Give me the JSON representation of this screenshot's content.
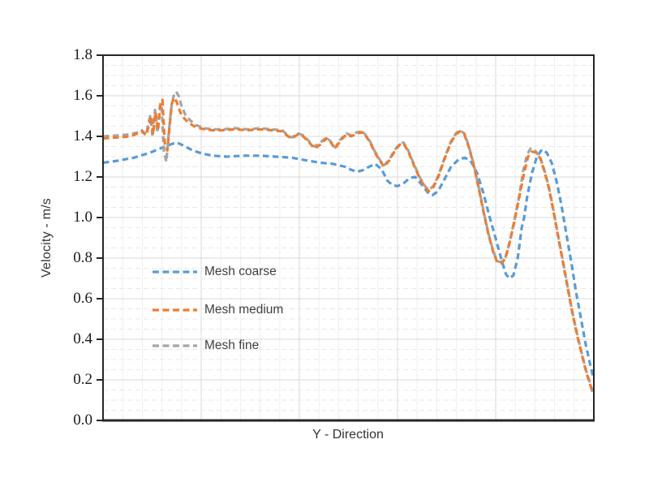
{
  "chart": {
    "y_axis_title": "Velocity - m/s",
    "x_axis_title": "Y - Direction",
    "y_ticks": [
      "1.8",
      "1.6",
      "1.4",
      "1.2",
      "1.0",
      "0.8",
      "0.6",
      "0.4",
      "0.2",
      "0.0"
    ]
  },
  "legend": {
    "items": [
      {
        "label": "Mesh coarse",
        "color": "#5B9BD5"
      },
      {
        "label": "Mesh medium",
        "color": "#ED7D31"
      },
      {
        "label": "Mesh fine",
        "color": "#A5A5A5"
      }
    ]
  },
  "colors": {
    "axis_border": "#262626",
    "grid_major": "#D9D9D9",
    "grid_minor": "#EFEFEF",
    "grid_minor_dashed": "#E9E9E9"
  },
  "chart_data": {
    "type": "line",
    "title": "",
    "xlabel": "Y - Direction",
    "ylabel": "Velocity - m/s",
    "ylim": [
      0,
      1.8
    ],
    "y_tick_step": 0.2,
    "y_minor_step": 0.05,
    "xlim": [
      0,
      1
    ],
    "x_minor_divisions": 25,
    "x_major_divisions": 5,
    "grid": "major-solid, minor-dashed-horizontal, minor-solid-vertical",
    "legend_position": "inside-left-middle",
    "line_style": "dashed",
    "x_note": "x axis has no numeric tick labels; x given as normalized 0-1 across plot",
    "series": [
      {
        "name": "Mesh coarse",
        "color": "#5B9BD5",
        "points": [
          [
            0,
            1.27
          ],
          [
            0.03,
            1.28
          ],
          [
            0.063,
            1.295
          ],
          [
            0.096,
            1.32
          ],
          [
            0.121,
            1.345
          ],
          [
            0.137,
            1.36
          ],
          [
            0.15,
            1.37
          ],
          [
            0.164,
            1.355
          ],
          [
            0.183,
            1.33
          ],
          [
            0.203,
            1.315
          ],
          [
            0.223,
            1.305
          ],
          [
            0.253,
            1.3
          ],
          [
            0.286,
            1.305
          ],
          [
            0.319,
            1.305
          ],
          [
            0.352,
            1.3
          ],
          [
            0.385,
            1.295
          ],
          [
            0.418,
            1.28
          ],
          [
            0.443,
            1.27
          ],
          [
            0.468,
            1.265
          ],
          [
            0.493,
            1.25
          ],
          [
            0.506,
            1.235
          ],
          [
            0.517,
            1.225
          ],
          [
            0.531,
            1.235
          ],
          [
            0.542,
            1.25
          ],
          [
            0.554,
            1.265
          ],
          [
            0.567,
            1.24
          ],
          [
            0.58,
            1.18
          ],
          [
            0.59,
            1.16
          ],
          [
            0.6,
            1.155
          ],
          [
            0.613,
            1.17
          ],
          [
            0.625,
            1.195
          ],
          [
            0.636,
            1.2
          ],
          [
            0.65,
            1.16
          ],
          [
            0.661,
            1.125
          ],
          [
            0.671,
            1.11
          ],
          [
            0.683,
            1.13
          ],
          [
            0.696,
            1.19
          ],
          [
            0.709,
            1.25
          ],
          [
            0.724,
            1.285
          ],
          [
            0.737,
            1.295
          ],
          [
            0.749,
            1.28
          ],
          [
            0.762,
            1.22
          ],
          [
            0.775,
            1.12
          ],
          [
            0.788,
            1.0
          ],
          [
            0.802,
            0.88
          ],
          [
            0.812,
            0.79
          ],
          [
            0.821,
            0.72
          ],
          [
            0.828,
            0.7
          ],
          [
            0.836,
            0.715
          ],
          [
            0.845,
            0.8
          ],
          [
            0.853,
            0.95
          ],
          [
            0.858,
            1.0
          ],
          [
            0.864,
            1.1
          ],
          [
            0.874,
            1.22
          ],
          [
            0.884,
            1.3
          ],
          [
            0.894,
            1.335
          ],
          [
            0.904,
            1.32
          ],
          [
            0.914,
            1.27
          ],
          [
            0.924,
            1.18
          ],
          [
            0.934,
            1.06
          ],
          [
            0.944,
            0.92
          ],
          [
            0.954,
            0.78
          ],
          [
            0.964,
            0.63
          ],
          [
            0.974,
            0.5
          ],
          [
            0.983,
            0.38
          ],
          [
            0.992,
            0.28
          ],
          [
            0.998,
            0.22
          ]
        ]
      },
      {
        "name": "Mesh medium",
        "color": "#ED7D31",
        "points": [
          [
            0,
            1.39
          ],
          [
            0.03,
            1.395
          ],
          [
            0.055,
            1.4
          ],
          [
            0.071,
            1.415
          ],
          [
            0.079,
            1.425
          ],
          [
            0.088,
            1.405
          ],
          [
            0.094,
            1.46
          ],
          [
            0.098,
            1.5
          ],
          [
            0.102,
            1.41
          ],
          [
            0.107,
            1.52
          ],
          [
            0.112,
            1.43
          ],
          [
            0.117,
            1.56
          ],
          [
            0.121,
            1.58
          ],
          [
            0.126,
            1.36
          ],
          [
            0.131,
            1.33
          ],
          [
            0.136,
            1.46
          ],
          [
            0.14,
            1.56
          ],
          [
            0.145,
            1.59
          ],
          [
            0.15,
            1.57
          ],
          [
            0.157,
            1.52
          ],
          [
            0.165,
            1.49
          ],
          [
            0.175,
            1.465
          ],
          [
            0.19,
            1.445
          ],
          [
            0.207,
            1.435
          ],
          [
            0.223,
            1.43
          ],
          [
            0.245,
            1.43
          ],
          [
            0.269,
            1.435
          ],
          [
            0.294,
            1.43
          ],
          [
            0.319,
            1.435
          ],
          [
            0.344,
            1.43
          ],
          [
            0.365,
            1.425
          ],
          [
            0.377,
            1.4
          ],
          [
            0.385,
            1.39
          ],
          [
            0.397,
            1.41
          ],
          [
            0.408,
            1.4
          ],
          [
            0.42,
            1.37
          ],
          [
            0.431,
            1.34
          ],
          [
            0.443,
            1.36
          ],
          [
            0.455,
            1.39
          ],
          [
            0.464,
            1.37
          ],
          [
            0.473,
            1.34
          ],
          [
            0.484,
            1.38
          ],
          [
            0.496,
            1.41
          ],
          [
            0.506,
            1.4
          ],
          [
            0.517,
            1.415
          ],
          [
            0.529,
            1.42
          ],
          [
            0.542,
            1.38
          ],
          [
            0.554,
            1.32
          ],
          [
            0.564,
            1.28
          ],
          [
            0.572,
            1.25
          ],
          [
            0.583,
            1.28
          ],
          [
            0.595,
            1.33
          ],
          [
            0.605,
            1.36
          ],
          [
            0.612,
            1.365
          ],
          [
            0.621,
            1.33
          ],
          [
            0.633,
            1.26
          ],
          [
            0.646,
            1.19
          ],
          [
            0.656,
            1.15
          ],
          [
            0.663,
            1.13
          ],
          [
            0.673,
            1.15
          ],
          [
            0.683,
            1.2
          ],
          [
            0.696,
            1.29
          ],
          [
            0.709,
            1.37
          ],
          [
            0.719,
            1.41
          ],
          [
            0.727,
            1.425
          ],
          [
            0.736,
            1.41
          ],
          [
            0.745,
            1.35
          ],
          [
            0.755,
            1.26
          ],
          [
            0.765,
            1.15
          ],
          [
            0.775,
            1.03
          ],
          [
            0.785,
            0.92
          ],
          [
            0.795,
            0.83
          ],
          [
            0.803,
            0.78
          ],
          [
            0.812,
            0.775
          ],
          [
            0.82,
            0.8
          ],
          [
            0.828,
            0.87
          ],
          [
            0.838,
            0.98
          ],
          [
            0.848,
            1.1
          ],
          [
            0.858,
            1.22
          ],
          [
            0.866,
            1.3
          ],
          [
            0.874,
            1.325
          ],
          [
            0.883,
            1.32
          ],
          [
            0.891,
            1.29
          ],
          [
            0.899,
            1.23
          ],
          [
            0.908,
            1.15
          ],
          [
            0.917,
            1.04
          ],
          [
            0.927,
            0.91
          ],
          [
            0.937,
            0.78
          ],
          [
            0.947,
            0.65
          ],
          [
            0.957,
            0.52
          ],
          [
            0.967,
            0.41
          ],
          [
            0.977,
            0.31
          ],
          [
            0.985,
            0.235
          ],
          [
            0.992,
            0.18
          ],
          [
            0.998,
            0.14
          ]
        ]
      },
      {
        "name": "Mesh fine",
        "color": "#A5A5A5",
        "points": [
          [
            0,
            1.4
          ],
          [
            0.03,
            1.405
          ],
          [
            0.055,
            1.41
          ],
          [
            0.071,
            1.42
          ],
          [
            0.079,
            1.43
          ],
          [
            0.088,
            1.41
          ],
          [
            0.093,
            1.47
          ],
          [
            0.096,
            1.5
          ],
          [
            0.101,
            1.4
          ],
          [
            0.106,
            1.53
          ],
          [
            0.111,
            1.42
          ],
          [
            0.116,
            1.55
          ],
          [
            0.119,
            1.56
          ],
          [
            0.124,
            1.33
          ],
          [
            0.129,
            1.275
          ],
          [
            0.134,
            1.42
          ],
          [
            0.139,
            1.54
          ],
          [
            0.144,
            1.6
          ],
          [
            0.149,
            1.62
          ],
          [
            0.154,
            1.6
          ],
          [
            0.16,
            1.55
          ],
          [
            0.167,
            1.51
          ],
          [
            0.177,
            1.48
          ],
          [
            0.19,
            1.455
          ],
          [
            0.207,
            1.44
          ],
          [
            0.223,
            1.435
          ],
          [
            0.245,
            1.435
          ],
          [
            0.269,
            1.44
          ],
          [
            0.294,
            1.435
          ],
          [
            0.319,
            1.44
          ],
          [
            0.344,
            1.435
          ],
          [
            0.365,
            1.43
          ],
          [
            0.377,
            1.405
          ],
          [
            0.385,
            1.395
          ],
          [
            0.397,
            1.415
          ],
          [
            0.408,
            1.405
          ],
          [
            0.42,
            1.375
          ],
          [
            0.431,
            1.35
          ],
          [
            0.443,
            1.37
          ],
          [
            0.455,
            1.395
          ],
          [
            0.464,
            1.375
          ],
          [
            0.473,
            1.345
          ],
          [
            0.484,
            1.385
          ],
          [
            0.496,
            1.415
          ],
          [
            0.506,
            1.405
          ],
          [
            0.517,
            1.42
          ],
          [
            0.529,
            1.425
          ],
          [
            0.542,
            1.385
          ],
          [
            0.554,
            1.325
          ],
          [
            0.564,
            1.285
          ],
          [
            0.572,
            1.255
          ],
          [
            0.583,
            1.285
          ],
          [
            0.595,
            1.335
          ],
          [
            0.605,
            1.365
          ],
          [
            0.612,
            1.37
          ],
          [
            0.621,
            1.335
          ],
          [
            0.633,
            1.265
          ],
          [
            0.646,
            1.195
          ],
          [
            0.656,
            1.155
          ],
          [
            0.663,
            1.135
          ],
          [
            0.673,
            1.155
          ],
          [
            0.683,
            1.205
          ],
          [
            0.696,
            1.295
          ],
          [
            0.709,
            1.375
          ],
          [
            0.719,
            1.415
          ],
          [
            0.727,
            1.43
          ],
          [
            0.736,
            1.415
          ],
          [
            0.745,
            1.355
          ],
          [
            0.755,
            1.265
          ],
          [
            0.765,
            1.155
          ],
          [
            0.775,
            1.035
          ],
          [
            0.785,
            0.925
          ],
          [
            0.795,
            0.835
          ],
          [
            0.803,
            0.785
          ],
          [
            0.812,
            0.78
          ],
          [
            0.82,
            0.805
          ],
          [
            0.828,
            0.875
          ],
          [
            0.838,
            0.985
          ],
          [
            0.848,
            1.105
          ],
          [
            0.856,
            1.23
          ],
          [
            0.864,
            1.31
          ],
          [
            0.871,
            1.34
          ],
          [
            0.88,
            1.33
          ],
          [
            0.891,
            1.295
          ],
          [
            0.899,
            1.235
          ],
          [
            0.908,
            1.155
          ],
          [
            0.917,
            1.045
          ],
          [
            0.927,
            0.915
          ],
          [
            0.937,
            0.785
          ],
          [
            0.947,
            0.655
          ],
          [
            0.957,
            0.525
          ],
          [
            0.967,
            0.415
          ],
          [
            0.977,
            0.315
          ],
          [
            0.985,
            0.24
          ],
          [
            0.992,
            0.185
          ],
          [
            0.998,
            0.13
          ]
        ]
      }
    ]
  }
}
